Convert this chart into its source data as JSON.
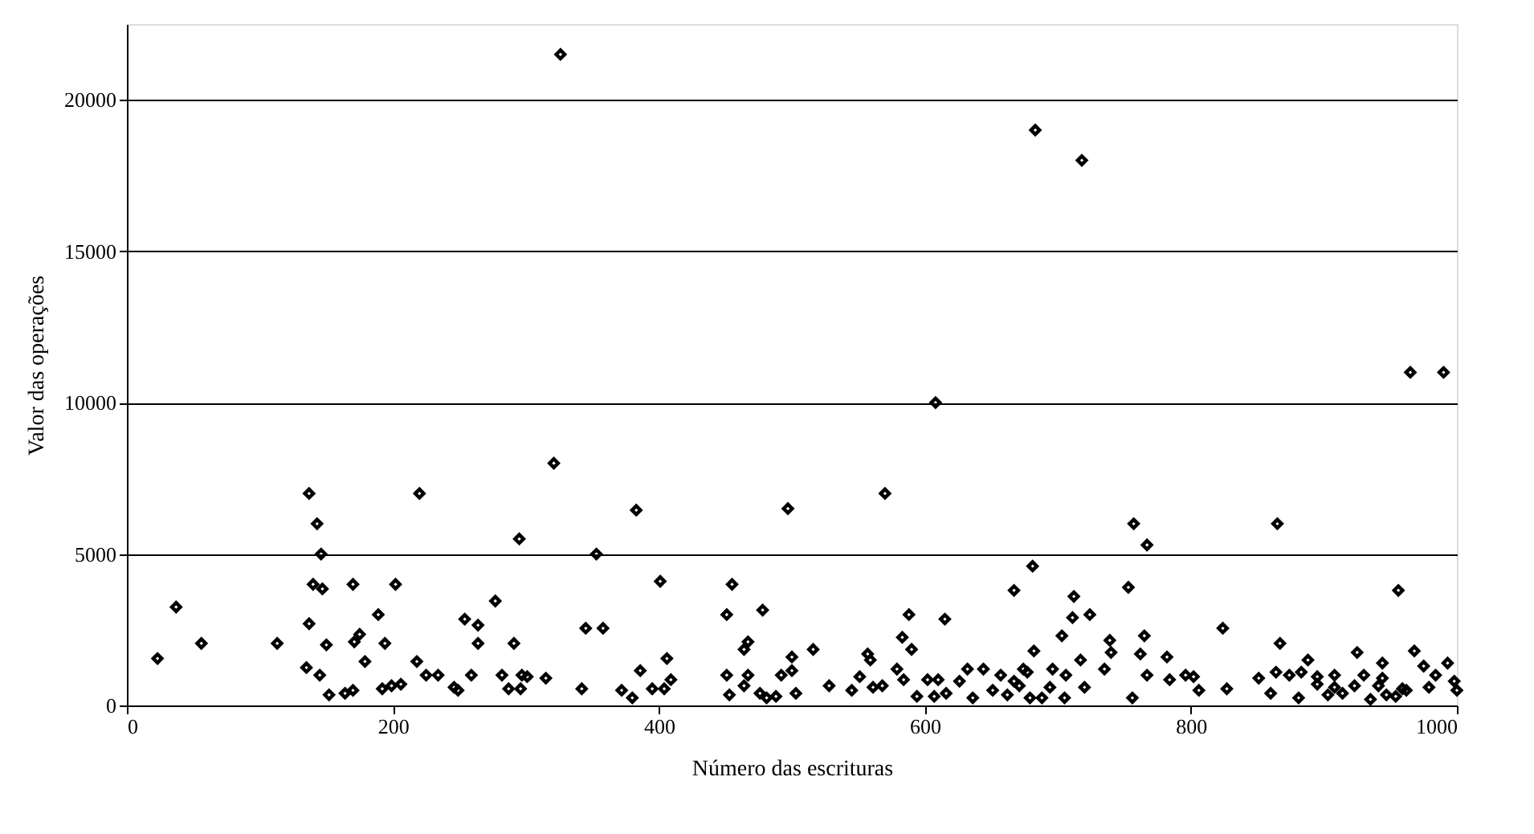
{
  "chart_data": {
    "type": "scatter",
    "xlabel": "Número das escrituras",
    "ylabel": "Valor das operações",
    "xlim": [
      0,
      1000
    ],
    "xticks": [
      0,
      200,
      400,
      600,
      800,
      1000
    ],
    "ylim": [
      0,
      22500
    ],
    "yticks": [
      0,
      5000,
      10000,
      15000,
      20000
    ],
    "grid": "y",
    "marker": "diamond",
    "series": [
      {
        "color": "#000000",
        "x": [
          23,
          37,
          56,
          113,
          137,
          143,
          146,
          140,
          147,
          137,
          150,
          135,
          145,
          152,
          164,
          170,
          170,
          175,
          171,
          179,
          189,
          194,
          202,
          192,
          199,
          206,
          220,
          218,
          225,
          234,
          246,
          249,
          254,
          264,
          264,
          259,
          277,
          282,
          291,
          295,
          287,
          296,
          297,
          301,
          315,
          321,
          326,
          383,
          497,
          570,
          353,
          401,
          455,
          451,
          478,
          345,
          358,
          588,
          615,
          583,
          590,
          467,
          464,
          406,
          386,
          409,
          342,
          372,
          380,
          395,
          404,
          451,
          453,
          464,
          467,
          476,
          481,
          488,
          492,
          500,
          500,
          503,
          516,
          528,
          545,
          551,
          557,
          559,
          561,
          568,
          579,
          584,
          594,
          602,
          610,
          607,
          616,
          626,
          632,
          636,
          644,
          608,
          683,
          718,
          757,
          865,
          767,
          681,
          667,
          753,
          956,
          712,
          711,
          724,
          824,
          703,
          739,
          765,
          867,
          682,
          740,
          968,
          762,
          717,
          782,
          925,
          944,
          888,
          674,
          696,
          735,
          657,
          677,
          706,
          767,
          796,
          802,
          851,
          864,
          874,
          883,
          895,
          908,
          923,
          930,
          944,
          984,
          667,
          671,
          694,
          720,
          784,
          827,
          806,
          895,
          908,
          941,
          959,
          979,
          651,
          662,
          679,
          688,
          705,
          756,
          860,
          881,
          903,
          914,
          935,
          947,
          954,
          962,
          965,
          990,
          993,
          975,
          998,
          1000
        ],
        "values": [
          1550,
          3250,
          2050,
          2050,
          7000,
          6000,
          5000,
          4000,
          3850,
          2700,
          2000,
          1250,
          1000,
          350,
          400,
          500,
          4000,
          2350,
          2100,
          1450,
          3000,
          2050,
          4000,
          550,
          650,
          700,
          7000,
          1450,
          1000,
          1000,
          600,
          500,
          2850,
          2650,
          2050,
          1000,
          3450,
          1000,
          2050,
          5500,
          550,
          550,
          1000,
          950,
          900,
          8000,
          21500,
          6450,
          6500,
          7000,
          5000,
          4100,
          4000,
          3000,
          3150,
          2550,
          2550,
          3000,
          2850,
          2250,
          1850,
          2100,
          1850,
          1550,
          1150,
          850,
          550,
          500,
          250,
          550,
          550,
          1000,
          350,
          650,
          1000,
          400,
          250,
          300,
          1000,
          1150,
          1600,
          400,
          1850,
          650,
          500,
          950,
          1700,
          1500,
          600,
          650,
          1200,
          850,
          300,
          850,
          850,
          300,
          400,
          800,
          1200,
          250,
          1200,
          10000,
          19000,
          18000,
          6000,
          6000,
          5300,
          4600,
          3800,
          3900,
          3800,
          3600,
          2900,
          3000,
          2550,
          2300,
          2150,
          2300,
          2050,
          1800,
          1750,
          1800,
          1700,
          1500,
          1600,
          1750,
          1400,
          1500,
          1200,
          1200,
          1200,
          1000,
          1100,
          1000,
          1000,
          1000,
          950,
          900,
          1100,
          1000,
          1100,
          950,
          1000,
          650,
          1000,
          900,
          1000,
          800,
          650,
          600,
          600,
          850,
          550,
          500,
          700,
          600,
          650,
          550,
          600,
          500,
          350,
          250,
          250,
          250,
          250,
          400,
          250,
          350,
          400,
          200,
          350,
          300,
          500,
          11000,
          11000,
          1400,
          1300,
          800,
          500
        ]
      }
    ]
  }
}
